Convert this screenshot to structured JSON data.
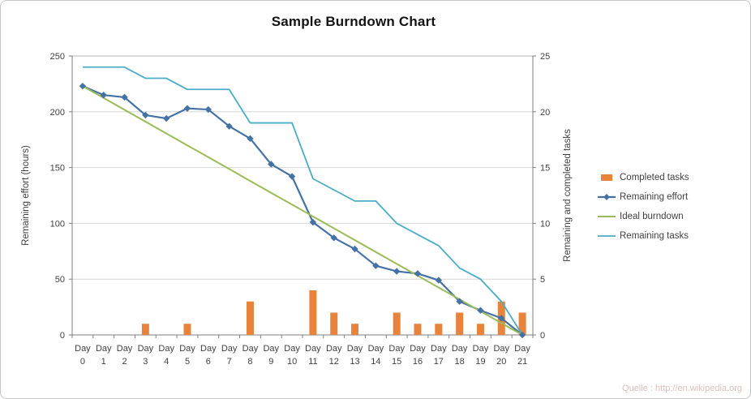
{
  "source_note": "Quelle : http://en.wikipedia.org",
  "chart_data": {
    "type": "combo (bar + line)",
    "title": "Sample Burndown Chart",
    "categories": [
      "Day 0",
      "Day 1",
      "Day 2",
      "Day 3",
      "Day 4",
      "Day 5",
      "Day 6",
      "Day 7",
      "Day 8",
      "Day 9",
      "Day 10",
      "Day 11",
      "Day 12",
      "Day 13",
      "Day 14",
      "Day 15",
      "Day 16",
      "Day 17",
      "Day 18",
      "Day 19",
      "Day 20",
      "Day 21"
    ],
    "left_axis": {
      "label": "Remaining effort (hours)",
      "min": 0,
      "max": 250,
      "ticks": [
        0,
        50,
        100,
        150,
        200,
        250
      ]
    },
    "right_axis": {
      "label": "Remaining and completed tasks",
      "min": 0,
      "max": 25,
      "ticks": [
        0,
        5,
        10,
        15,
        20,
        25
      ]
    },
    "gridlines": "horizontal",
    "legend_position": "right",
    "series": [
      {
        "name": "Completed tasks",
        "type": "bar",
        "axis": "right",
        "color": "#e8833c",
        "values": [
          null,
          null,
          null,
          1,
          null,
          1,
          null,
          null,
          3,
          null,
          null,
          4,
          2,
          1,
          null,
          2,
          1,
          1,
          2,
          1,
          3,
          2
        ]
      },
      {
        "name": "Remaining effort",
        "type": "line",
        "axis": "left",
        "color": "#4472a4",
        "marker": "diamond",
        "stroke_width": 2.2,
        "values": [
          223,
          215,
          213,
          197,
          194,
          203,
          202,
          187,
          176,
          153,
          142,
          101,
          87,
          77,
          62,
          57,
          55,
          49,
          30,
          22,
          15,
          0
        ]
      },
      {
        "name": "Ideal burndown",
        "type": "line",
        "axis": "left",
        "color": "#9bbb59",
        "stroke_width": 2,
        "values": [
          223,
          212.4,
          201.8,
          191.1,
          180.5,
          169.9,
          159.3,
          148.7,
          138,
          127.4,
          116.8,
          106.2,
          95.6,
          84.9,
          74.3,
          63.7,
          53.1,
          42.5,
          31.9,
          21.2,
          10.6,
          0
        ]
      },
      {
        "name": "Remaining tasks",
        "type": "line",
        "axis": "right",
        "color": "#4bacc6",
        "stroke_width": 1.8,
        "values": [
          24,
          24,
          24,
          23,
          23,
          22,
          22,
          22,
          19,
          19,
          19,
          14,
          13,
          12,
          12,
          10,
          9,
          8,
          6,
          5,
          3,
          0
        ]
      }
    ]
  }
}
